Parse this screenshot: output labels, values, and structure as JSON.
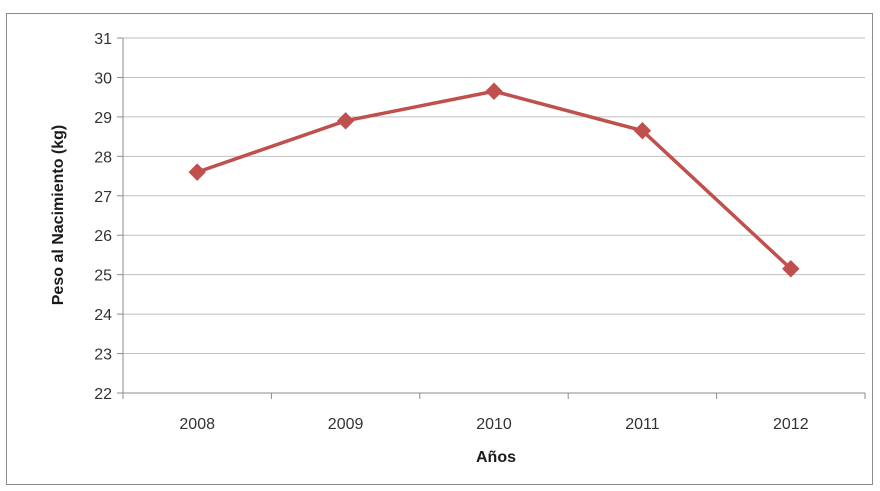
{
  "chart_data": {
    "type": "line",
    "title": "",
    "xlabel": "Años",
    "ylabel": "Peso al Nacimiento (kg)",
    "categories": [
      "2008",
      "2009",
      "2010",
      "2011",
      "2012"
    ],
    "series": [
      {
        "values": [
          27.6,
          28.9,
          29.65,
          28.65,
          25.15
        ]
      }
    ],
    "ylim": [
      22,
      31
    ],
    "yticks": [
      "22",
      "23",
      "24",
      "25",
      "26",
      "27",
      "28",
      "29",
      "30",
      "31"
    ],
    "grid": true,
    "legend": "none",
    "colors": {
      "line": "#c0504d",
      "grid": "#bfbfbf",
      "axis": "#8c8c8c"
    }
  }
}
